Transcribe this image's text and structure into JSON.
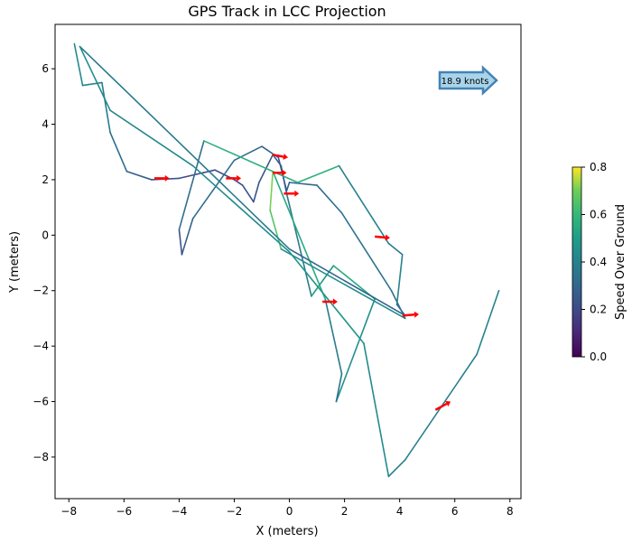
{
  "chart_data": {
    "type": "line",
    "title": "GPS Track in LCC Projection",
    "xlabel": "X (meters)",
    "ylabel": "Y (meters)",
    "xlim": [
      -8.5,
      8.4
    ],
    "ylim": [
      -9.5,
      7.6
    ],
    "xticks": [
      -8,
      -6,
      -4,
      -2,
      0,
      2,
      4,
      6,
      8
    ],
    "yticks": [
      -8,
      -6,
      -4,
      -2,
      0,
      2,
      4,
      6
    ],
    "grid": false,
    "colorbar": {
      "label": "Speed Over Ground",
      "range": [
        0.0,
        0.8
      ],
      "ticks": [
        0.0,
        0.2,
        0.4,
        0.6,
        0.8
      ],
      "colormap": "viridis"
    },
    "annotation": {
      "text": "18.9 knots",
      "style": "arrow-box",
      "location": "top-right"
    },
    "track": [
      {
        "x": -7.8,
        "y": 6.9,
        "speed": 0.44
      },
      {
        "x": -7.5,
        "y": 5.4,
        "speed": 0.42
      },
      {
        "x": -6.8,
        "y": 5.5,
        "speed": 0.4
      },
      {
        "x": -6.5,
        "y": 3.7,
        "speed": 0.35
      },
      {
        "x": -5.9,
        "y": 2.3,
        "speed": 0.3
      },
      {
        "x": -5.0,
        "y": 2.0,
        "speed": 0.25
      },
      {
        "x": -4.0,
        "y": 2.05,
        "speed": 0.22
      },
      {
        "x": -2.7,
        "y": 2.35,
        "speed": 0.2
      },
      {
        "x": -2.0,
        "y": 2.0,
        "speed": 0.2
      },
      {
        "x": -1.7,
        "y": 1.8,
        "speed": 0.22
      },
      {
        "x": -1.3,
        "y": 1.2,
        "speed": 0.22
      },
      {
        "x": -1.1,
        "y": 1.9,
        "speed": 0.25
      },
      {
        "x": -0.6,
        "y": 2.9,
        "speed": 0.25
      },
      {
        "x": -0.3,
        "y": 2.5,
        "speed": 0.28
      },
      {
        "x": -0.1,
        "y": 1.5,
        "speed": 0.3
      },
      {
        "x": 0.8,
        "y": -2.2,
        "speed": 0.45
      },
      {
        "x": 1.6,
        "y": -1.1,
        "speed": 0.55
      },
      {
        "x": 3.1,
        "y": -2.3,
        "speed": 0.55
      },
      {
        "x": 1.7,
        "y": -6.0,
        "speed": 0.35
      },
      {
        "x": 1.9,
        "y": -5.0,
        "speed": 0.35
      },
      {
        "x": 1.3,
        "y": -2.3,
        "speed": 0.4
      },
      {
        "x": -0.6,
        "y": 2.3,
        "speed": 0.7
      },
      {
        "x": -0.7,
        "y": 0.9,
        "speed": 0.72
      },
      {
        "x": -0.3,
        "y": -0.5,
        "speed": 0.6
      },
      {
        "x": 4.2,
        "y": -3.0,
        "speed": 0.28
      },
      {
        "x": 3.7,
        "y": -2.0,
        "speed": 0.35
      },
      {
        "x": 1.9,
        "y": 0.8,
        "speed": 0.35
      },
      {
        "x": 1.0,
        "y": 1.8,
        "speed": 0.3
      },
      {
        "x": 0.0,
        "y": 1.9,
        "speed": 0.3
      },
      {
        "x": -0.1,
        "y": 1.6,
        "speed": 0.25
      },
      {
        "x": -0.4,
        "y": 2.8,
        "speed": 0.25
      },
      {
        "x": -1.0,
        "y": 3.2,
        "speed": 0.3
      },
      {
        "x": -2.0,
        "y": 2.7,
        "speed": 0.35
      },
      {
        "x": -3.5,
        "y": 0.6,
        "speed": 0.3
      },
      {
        "x": -3.9,
        "y": -0.7,
        "speed": 0.25
      },
      {
        "x": -4.0,
        "y": 0.2,
        "speed": 0.2
      },
      {
        "x": -3.1,
        "y": 3.4,
        "speed": 0.45
      },
      {
        "x": 0.3,
        "y": 1.9,
        "speed": 0.7
      },
      {
        "x": 1.8,
        "y": 2.5,
        "speed": 0.45
      },
      {
        "x": 3.6,
        "y": -0.3,
        "speed": 0.35
      },
      {
        "x": 4.1,
        "y": -0.7,
        "speed": 0.4
      },
      {
        "x": 3.9,
        "y": -2.5,
        "speed": 0.4
      },
      {
        "x": 4.2,
        "y": -2.9,
        "speed": 0.28
      },
      {
        "x": 0.0,
        "y": -0.5,
        "speed": 0.3
      },
      {
        "x": -7.6,
        "y": 6.8,
        "speed": 0.45
      },
      {
        "x": -6.5,
        "y": 4.5,
        "speed": 0.42
      },
      {
        "x": -3.5,
        "y": 2.5,
        "speed": 0.42
      },
      {
        "x": 0.0,
        "y": -0.6,
        "speed": 0.45
      },
      {
        "x": 2.7,
        "y": -3.9,
        "speed": 0.48
      },
      {
        "x": 3.6,
        "y": -8.7,
        "speed": 0.38
      },
      {
        "x": 4.2,
        "y": -8.1,
        "speed": 0.38
      },
      {
        "x": 6.8,
        "y": -4.3,
        "speed": 0.4
      },
      {
        "x": 7.6,
        "y": -2.0,
        "speed": 0.4
      }
    ],
    "heading_arrows": [
      {
        "x": -4.9,
        "y": 2.05,
        "dx": 0.55,
        "dy": 0.0
      },
      {
        "x": -2.3,
        "y": 2.05,
        "dx": 0.55,
        "dy": 0.0
      },
      {
        "x": -0.6,
        "y": 2.9,
        "dx": 0.55,
        "dy": -0.1
      },
      {
        "x": -0.6,
        "y": 2.25,
        "dx": 0.5,
        "dy": 0.0
      },
      {
        "x": -0.2,
        "y": 1.5,
        "dx": 0.55,
        "dy": 0.0
      },
      {
        "x": 3.1,
        "y": -0.05,
        "dx": 0.55,
        "dy": -0.05
      },
      {
        "x": 1.2,
        "y": -2.4,
        "dx": 0.55,
        "dy": 0.0
      },
      {
        "x": 4.1,
        "y": -2.9,
        "dx": 0.6,
        "dy": 0.05
      },
      {
        "x": 5.3,
        "y": -6.3,
        "dx": 0.55,
        "dy": 0.3
      }
    ]
  }
}
